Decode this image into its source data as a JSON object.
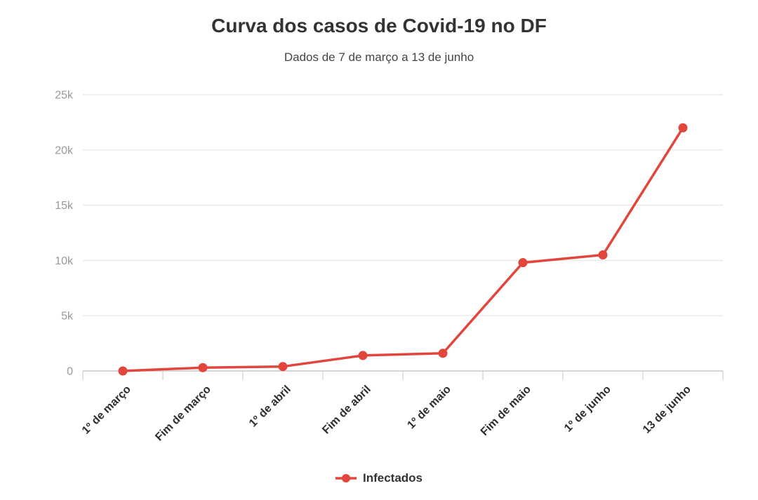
{
  "chart_data": {
    "type": "line",
    "title": "Curva dos casos de Covid-19 no DF",
    "subtitle": "Dados de 7 de março a 13 de junho",
    "categories": [
      "1º de março",
      "Fim de março",
      "1º de abril",
      "Fim de abril",
      "1º de maio",
      "Fim de maio",
      "1º de junho",
      "13 de junho"
    ],
    "series": [
      {
        "name": "Infectados",
        "color": "#e2453c",
        "values": [
          1,
          300,
          400,
          1400,
          1600,
          9800,
          10500,
          22000
        ]
      }
    ],
    "xlabel": "",
    "ylabel": "",
    "ylim": [
      0,
      25000
    ],
    "yticks": [
      {
        "value": 0,
        "label": "0"
      },
      {
        "value": 5000,
        "label": "5k"
      },
      {
        "value": 10000,
        "label": "10k"
      },
      {
        "value": 15000,
        "label": "15k"
      },
      {
        "value": 20000,
        "label": "20k"
      },
      {
        "value": 25000,
        "label": "25k"
      }
    ],
    "grid": true,
    "legend_position": "bottom",
    "colors": {
      "line": "#e2453c",
      "grid": "#eaeaea",
      "axis": "#c9c9c9",
      "y_tick_text": "#999999",
      "x_tick_text": "#2e2e2e",
      "title_text": "#333333",
      "subtitle_text": "#444444",
      "legend_text": "#333333",
      "background": "#ffffff"
    }
  }
}
